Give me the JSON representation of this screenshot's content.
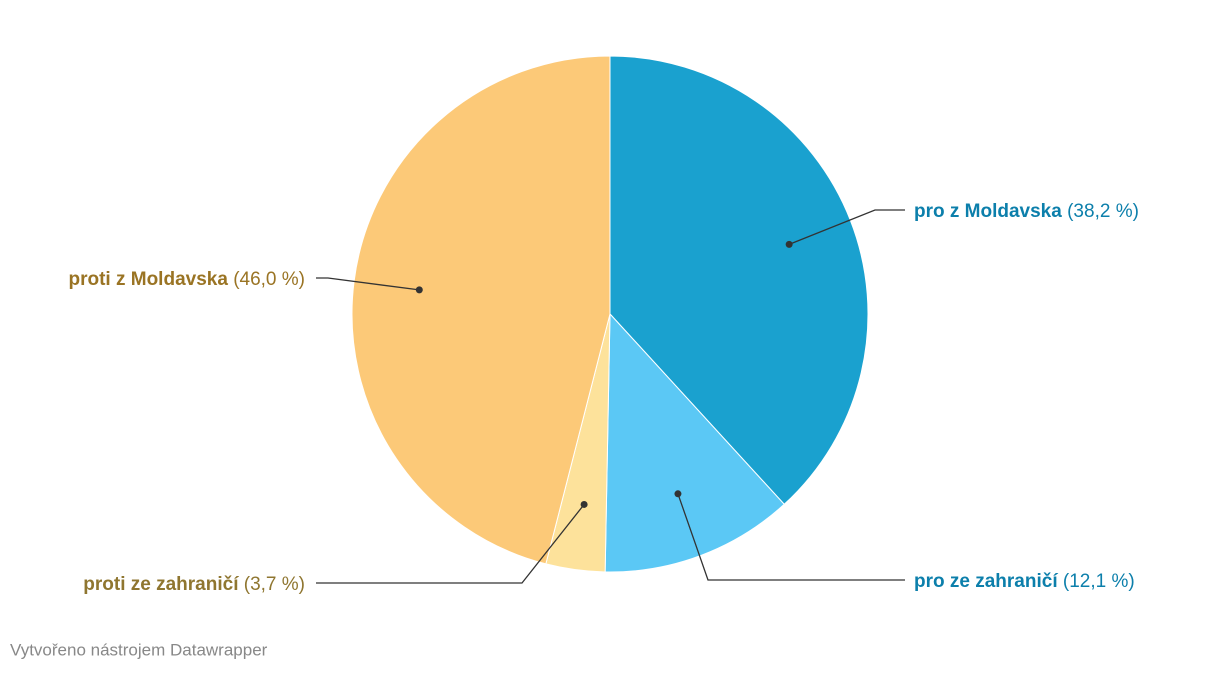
{
  "chart_data": {
    "type": "pie",
    "categories": [
      "pro z Moldavska",
      "pro ze zahraničí",
      "proti ze zahraničí",
      "proti z Moldavska"
    ],
    "values": [
      38.2,
      12.1,
      3.7,
      46.0
    ],
    "value_labels": [
      "(38,2 %)",
      "(12,1 %)",
      "(3,7 %)",
      "(46,0 %)"
    ],
    "colors": [
      "#1aa1cf",
      "#5bc8f5",
      "#fde29b",
      "#fcc978"
    ],
    "label_colors": [
      "#0c7fab",
      "#0c7fab",
      "#8f7630",
      "#9a7424"
    ],
    "credit": "Vytvořeno nástrojem Datawrapper"
  }
}
